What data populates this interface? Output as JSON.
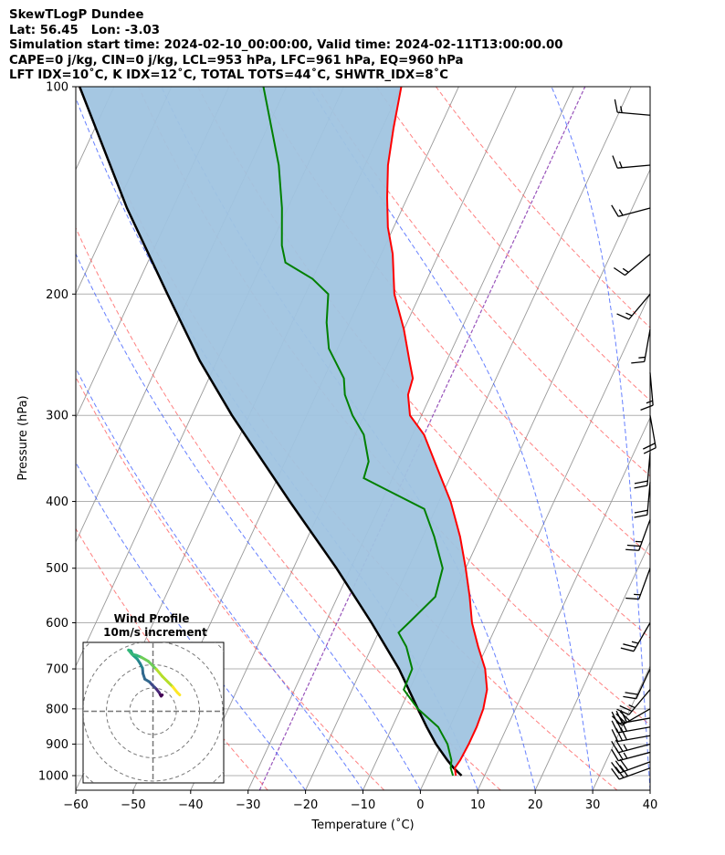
{
  "header": {
    "title": "SkewTLogP Dundee",
    "location": "Lat: 56.45   Lon: -3.03",
    "times": "Simulation start time: 2024-02-10_00:00:00, Valid time: 2024-02-11T13:00:00.00",
    "params": "CAPE=0 j/kg, CIN=0 j/kg, LCL=953 hPa, LFC=961 hPa, EQ=960 hPa",
    "indices": "LFT IDX=10˚C, K IDX=12˚C, TOTAL TOTS=44˚C, SHWTR_IDX=8˚C"
  },
  "chart_data": {
    "type": "skewt-logp",
    "xlabel": "Temperature (˚C)",
    "ylabel": "Pressure (hPa)",
    "xlim": [
      -60,
      40
    ],
    "ylim": [
      1050,
      100
    ],
    "x_ticks": [
      "−60",
      "−50",
      "−40",
      "−30",
      "−20",
      "−10",
      "0",
      "10",
      "20",
      "30",
      "40"
    ],
    "y_ticks": [
      "100",
      "200",
      "300",
      "400",
      "500",
      "600",
      "700",
      "800",
      "900",
      "1000"
    ],
    "y_tick_values": [
      100,
      200,
      300,
      400,
      500,
      600,
      700,
      800,
      900,
      1000
    ],
    "x_tick_values": [
      -60,
      -50,
      -40,
      -30,
      -20,
      -10,
      0,
      10,
      20,
      30,
      40
    ],
    "temperature": [
      [
        1000,
        5.0
      ],
      [
        975,
        4.2
      ],
      [
        950,
        4.5
      ],
      [
        900,
        4.7
      ],
      [
        850,
        4.7
      ],
      [
        800,
        4.4
      ],
      [
        750,
        3.5
      ],
      [
        700,
        1.5
      ],
      [
        650,
        -1.5
      ],
      [
        600,
        -4.5
      ],
      [
        550,
        -7.0
      ],
      [
        500,
        -10.0
      ],
      [
        450,
        -13.5
      ],
      [
        400,
        -18.0
      ],
      [
        350,
        -24.0
      ],
      [
        320,
        -28.0
      ],
      [
        300,
        -32.0
      ],
      [
        280,
        -34.0
      ],
      [
        265,
        -34.5
      ],
      [
        250,
        -36.5
      ],
      [
        225,
        -40.0
      ],
      [
        200,
        -44.5
      ],
      [
        175,
        -48.0
      ],
      [
        160,
        -51.0
      ],
      [
        145,
        -53.5
      ],
      [
        130,
        -56.0
      ],
      [
        115,
        -58.0
      ],
      [
        100,
        -60.0
      ]
    ],
    "dewpoint": [
      [
        1000,
        4.5
      ],
      [
        975,
        3.5
      ],
      [
        950,
        3.0
      ],
      [
        900,
        1.0
      ],
      [
        850,
        -2.0
      ],
      [
        800,
        -7.0
      ],
      [
        750,
        -11.0
      ],
      [
        700,
        -11.2
      ],
      [
        650,
        -14.0
      ],
      [
        620,
        -16.5
      ],
      [
        600,
        -15.5
      ],
      [
        550,
        -13.0
      ],
      [
        500,
        -14.0
      ],
      [
        450,
        -18.0
      ],
      [
        410,
        -22.0
      ],
      [
        385,
        -30.0
      ],
      [
        370,
        -35.0
      ],
      [
        350,
        -35.5
      ],
      [
        320,
        -38.5
      ],
      [
        300,
        -42.0
      ],
      [
        280,
        -45.0
      ],
      [
        265,
        -46.5
      ],
      [
        240,
        -51.5
      ],
      [
        220,
        -54.0
      ],
      [
        200,
        -56.0
      ],
      [
        190,
        -60.0
      ],
      [
        180,
        -66.0
      ],
      [
        170,
        -68.0
      ],
      [
        150,
        -71.0
      ],
      [
        130,
        -75.0
      ],
      [
        100,
        -84.0
      ]
    ],
    "parcel": [
      [
        1000,
        6.0
      ],
      [
        975,
        4.0
      ],
      [
        950,
        2.3
      ],
      [
        900,
        -1.0
      ],
      [
        850,
        -4.0
      ],
      [
        800,
        -7.0
      ],
      [
        700,
        -13.5
      ],
      [
        600,
        -22.0
      ],
      [
        500,
        -32.5
      ],
      [
        400,
        -46.0
      ],
      [
        300,
        -63.0
      ],
      [
        250,
        -73.0
      ],
      [
        200,
        -84.0
      ],
      [
        150,
        -98.0
      ],
      [
        100,
        -116.0
      ]
    ],
    "dry_adiabats_theta_C": [
      -30,
      -10,
      10,
      30,
      50,
      70,
      90,
      110,
      130,
      150
    ],
    "moist_adiabats_start_C": [
      -20,
      -10,
      0,
      10,
      20,
      30,
      40
    ],
    "isotherm_spacing_C": 10,
    "wind_barbs": [
      {
        "p": 975,
        "knots": 30,
        "dir": 250
      },
      {
        "p": 955,
        "knots": 30,
        "dir": 250
      },
      {
        "p": 925,
        "knots": 25,
        "dir": 255
      },
      {
        "p": 900,
        "knots": 25,
        "dir": 255
      },
      {
        "p": 875,
        "knots": 30,
        "dir": 260
      },
      {
        "p": 850,
        "knots": 30,
        "dir": 260
      },
      {
        "p": 825,
        "knots": 30,
        "dir": 260
      },
      {
        "p": 800,
        "knots": 30,
        "dir": 240
      },
      {
        "p": 750,
        "knots": 25,
        "dir": 220
      },
      {
        "p": 700,
        "knots": 20,
        "dir": 205
      },
      {
        "p": 600,
        "knots": 25,
        "dir": 210
      },
      {
        "p": 500,
        "knots": 15,
        "dir": 200
      },
      {
        "p": 425,
        "knots": 25,
        "dir": 200
      },
      {
        "p": 375,
        "knots": 20,
        "dir": 185
      },
      {
        "p": 340,
        "knots": 20,
        "dir": 185
      },
      {
        "p": 300,
        "knots": 20,
        "dir": 170
      },
      {
        "p": 260,
        "knots": 15,
        "dir": 175
      },
      {
        "p": 225,
        "knots": 15,
        "dir": 190
      },
      {
        "p": 200,
        "knots": 15,
        "dir": 220
      },
      {
        "p": 175,
        "knots": 15,
        "dir": 230
      },
      {
        "p": 150,
        "knots": 15,
        "dir": 255
      },
      {
        "p": 130,
        "knots": 15,
        "dir": 265
      },
      {
        "p": 110,
        "knots": 15,
        "dir": 275
      }
    ],
    "hodograph": {
      "title_line1": "Wind Profile",
      "title_line2": "10m/s increment",
      "ring_step_ms": 10,
      "rings": 3,
      "points_uv": [
        [
          4,
          7
        ],
        [
          3.5,
          6.5
        ],
        [
          3.2,
          7
        ],
        [
          2.7,
          8
        ],
        [
          2.2,
          8.6
        ],
        [
          1.5,
          9.5
        ],
        [
          0.8,
          10.2
        ],
        [
          -0.5,
          11.5
        ],
        [
          -1.5,
          12.6
        ],
        [
          -3.5,
          13.8
        ],
        [
          -4.3,
          16.2
        ],
        [
          -4.5,
          18.5
        ],
        [
          -5.5,
          20.5
        ],
        [
          -6.8,
          22.5
        ],
        [
          -8.5,
          24.0
        ],
        [
          -9.5,
          26.0
        ],
        [
          -10.5,
          26.3
        ],
        [
          -9.0,
          24.5
        ],
        [
          -7.0,
          24.0
        ],
        [
          -5.0,
          23.2
        ],
        [
          -2.0,
          21.5
        ],
        [
          1.5,
          18.0
        ],
        [
          4.0,
          15.0
        ],
        [
          6.5,
          12.5
        ],
        [
          8.5,
          10.5
        ],
        [
          10.5,
          8.0
        ],
        [
          11.5,
          7.0
        ]
      ]
    },
    "colors": {
      "temperature": "#ff0000",
      "dewpoint": "#008000",
      "parcel": "#000000",
      "cape_fill": "#a0c4e0",
      "dry_adiabat": "#ff5555",
      "moist_adiabat": "#3355ff",
      "isotherm": "#999999",
      "freezing_isotherm": "#9955bb",
      "grid": "#b0b0b0"
    }
  }
}
